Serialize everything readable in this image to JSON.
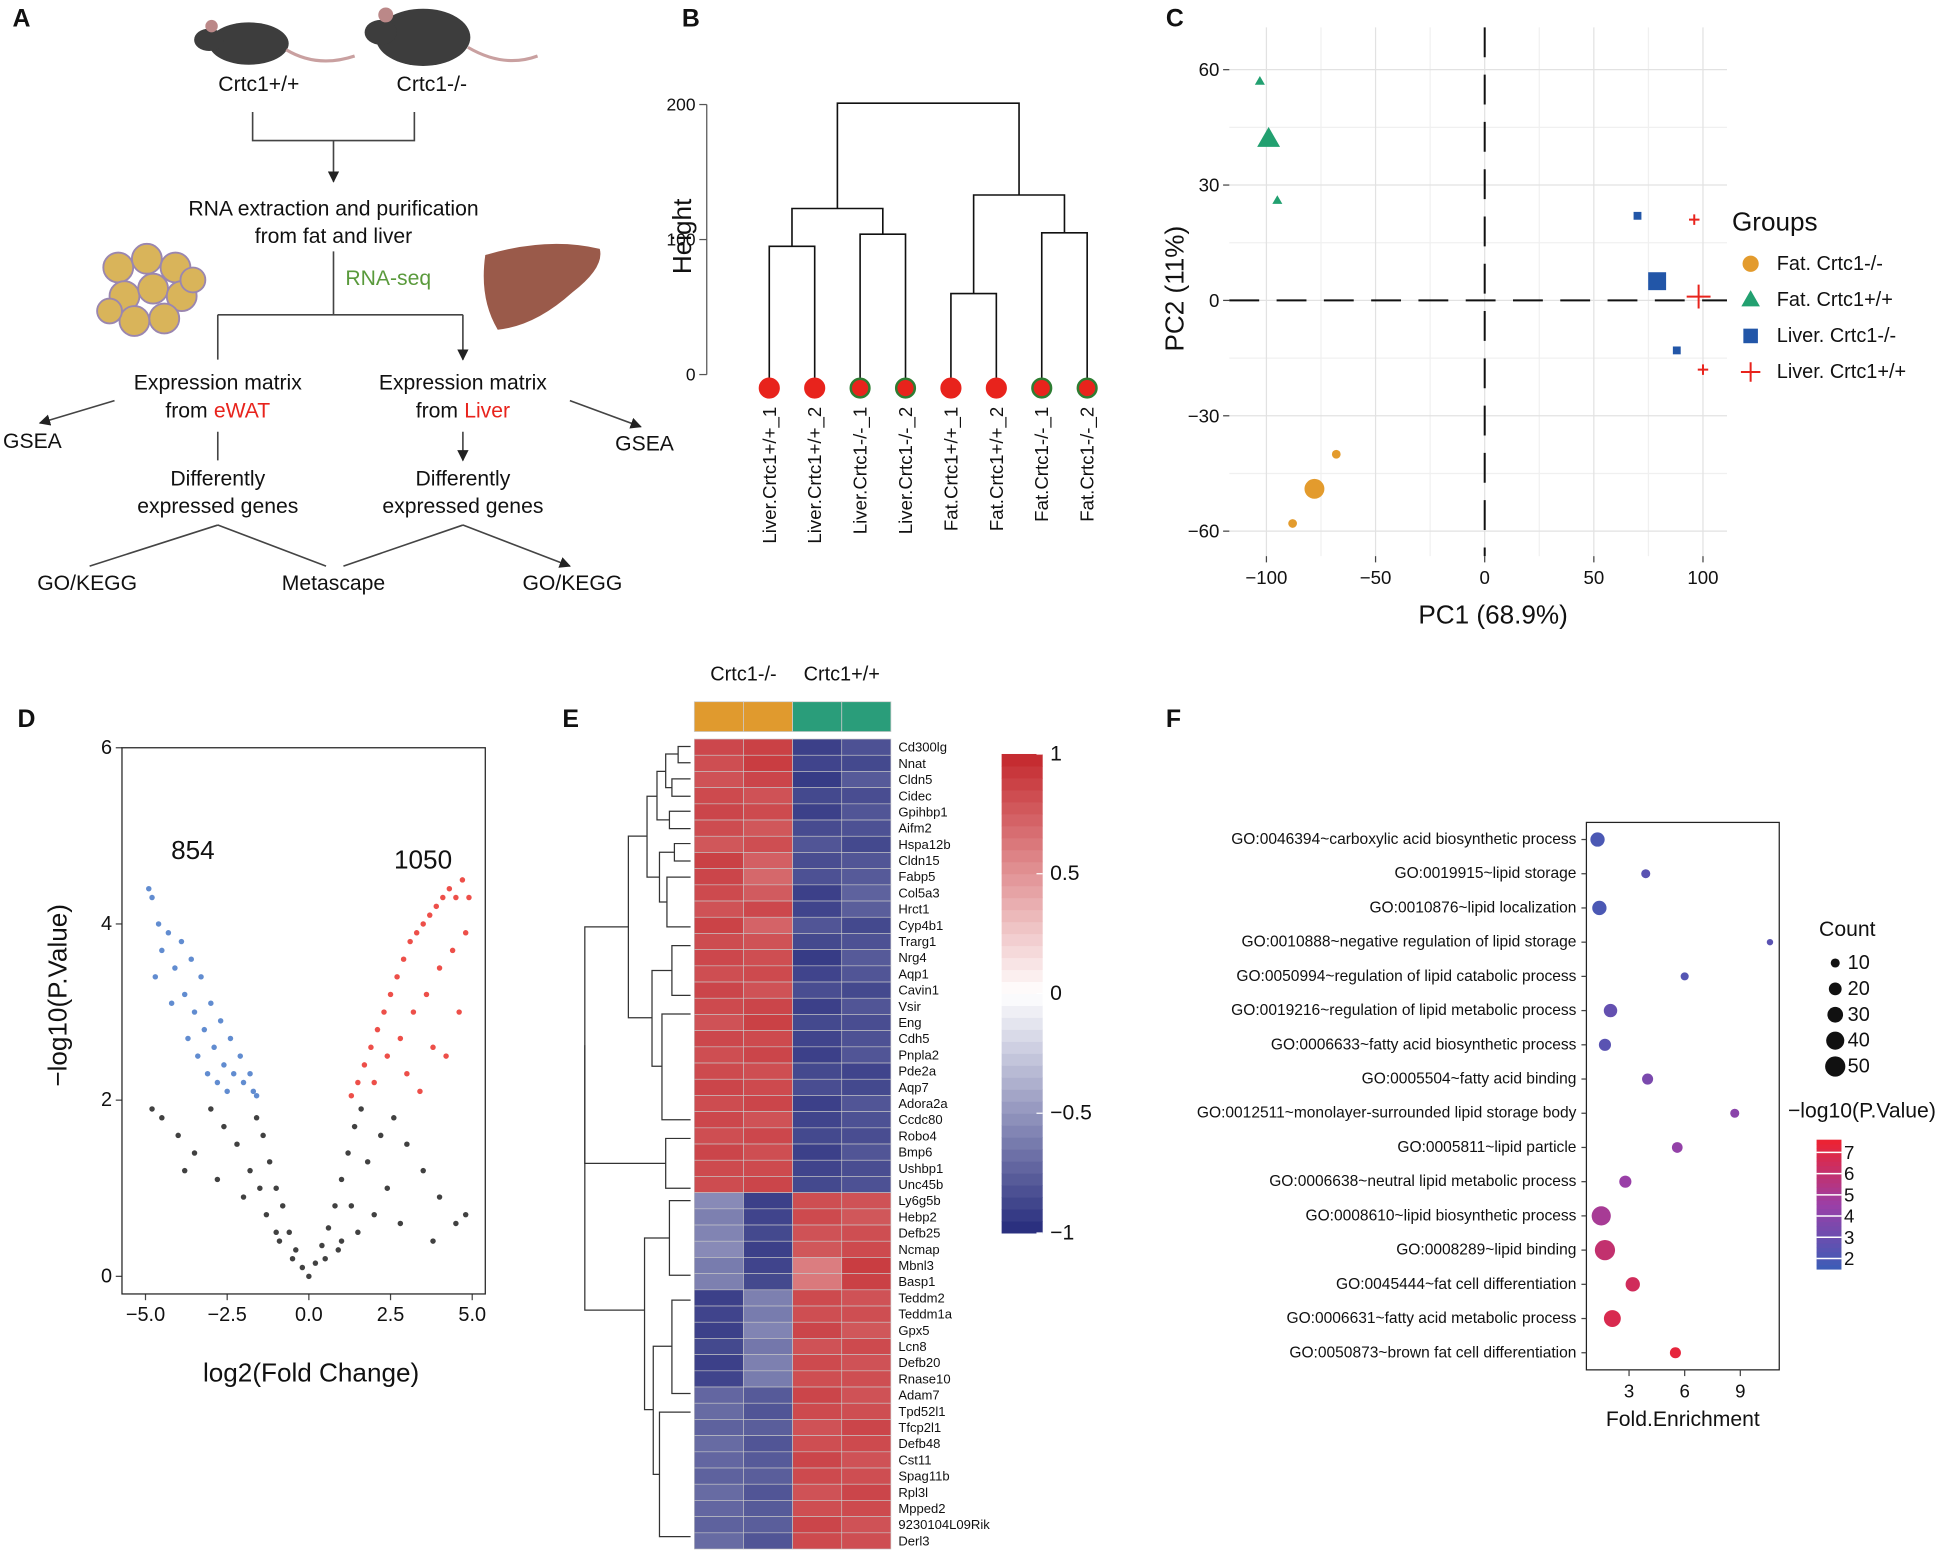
{
  "diagram": {
    "panel_label": "A",
    "mice": [
      "Crtc1+/+",
      "Crtc1-/-"
    ],
    "extraction": [
      "RNA extraction and purification",
      "from fat and liver"
    ],
    "method": "RNA-seq",
    "matrices": [
      {
        "lines": [
          "Expression matrix",
          "from"
        ],
        "tissue": "eWAT"
      },
      {
        "lines": [
          "Expression matrix",
          "from"
        ],
        "tissue": "Liver"
      }
    ],
    "gsea": [
      "GSEA",
      "GSEA"
    ],
    "deg": [
      [
        "Differently",
        "expressed genes"
      ],
      [
        "Differently",
        "expressed genes"
      ]
    ],
    "enrichment": [
      "GO/KEGG",
      "Metascape",
      "GO/KEGG"
    ]
  },
  "chart_data": [
    {
      "type": "dendrogram",
      "panel_label": "B",
      "ylabel": "Height",
      "leaves": [
        "Liver.Crtc1+/+_1",
        "Liver.Crtc1+/+_2",
        "Liver.Crtc1-/-_1",
        "Liver.Crtc1-/-_2",
        "Fat.Crtc1+/+_1",
        "Fat.Crtc1+/+_2",
        "Fat.Crtc1-/-_1",
        "Fat.Crtc1-/-_2"
      ],
      "leaf_fill": "#e8231c",
      "leaf_strokes": [
        "#e8231c",
        "#e8231c",
        "#2e7d32",
        "#2e7d32",
        "#e8231c",
        "#e8231c",
        "#2e7d32",
        "#2e7d32"
      ],
      "merges": [
        {
          "children": [
            0,
            1
          ],
          "height": 95
        },
        {
          "children": [
            2,
            3
          ],
          "height": 104
        },
        {
          "children": [
            8,
            9
          ],
          "height": 123
        },
        {
          "children": [
            4,
            5
          ],
          "height": 60
        },
        {
          "children": [
            6,
            7
          ],
          "height": 105
        },
        {
          "children": [
            11,
            12
          ],
          "height": 133
        },
        {
          "children": [
            10,
            13
          ],
          "height": 201
        }
      ],
      "ylim": [
        -10,
        205
      ],
      "yticks": [
        0,
        100,
        200
      ]
    },
    {
      "type": "scatter",
      "panel_label": "C",
      "xlabel": "PC1 (68.9%)",
      "ylabel": "PC2  (11%)",
      "xlim": [
        -117,
        111
      ],
      "ylim": [
        -66.5,
        71
      ],
      "xticks": [
        {
          "value": -100,
          "label": "−100"
        },
        {
          "value": -50,
          "label": "−50"
        },
        0,
        50,
        100
      ],
      "yticks": [
        {
          "value": -60,
          "label": "−60"
        },
        {
          "value": -30,
          "label": "−30"
        },
        0,
        30,
        60
      ],
      "grid": true,
      "reference_lines": {
        "x": 0,
        "y": 0
      },
      "legend": "right",
      "legend_title": "Groups",
      "series": [
        {
          "name": "Fat. Crtc1-/-",
          "color": "#e39b2d",
          "marker": "circle",
          "x": [
            -68,
            -88
          ],
          "values": [
            -40,
            -58
          ],
          "centroid": [
            -78,
            -49
          ]
        },
        {
          "name": "Fat. Crtc1+/+",
          "color": "#22a070",
          "marker": "triangle",
          "x": [
            -103,
            -95
          ],
          "values": [
            57,
            26
          ],
          "centroid": [
            -99,
            42
          ]
        },
        {
          "name": "Liver. Crtc1-/-",
          "color": "#2256a8",
          "marker": "square",
          "x": [
            70,
            88
          ],
          "values": [
            22,
            -13
          ],
          "centroid": [
            79,
            5
          ]
        },
        {
          "name": "Liver. Crtc1+/+",
          "color": "#e8231c",
          "marker": "plus",
          "x": [
            96,
            100
          ],
          "values": [
            21,
            -18
          ],
          "centroid": [
            98,
            1
          ]
        }
      ]
    },
    {
      "type": "scatter",
      "panel_label": "D",
      "xlabel": "log2(Fold Change)",
      "ylabel": "−log10(P.Value)",
      "xlim": [
        -5.72,
        5.4
      ],
      "ylim": [
        -0.2,
        6
      ],
      "xticks": [
        {
          "value": -5,
          "label": "−5.0"
        },
        {
          "value": -2.5,
          "label": "−2.5"
        },
        {
          "value": 0,
          "label": "0.0"
        },
        2.5,
        {
          "value": 5,
          "label": "5.0"
        }
      ],
      "yticks": [
        0,
        2,
        4,
        6
      ],
      "grid": false,
      "frame": true,
      "annotations": [
        "854",
        "1050"
      ],
      "series": [
        {
          "color": "#111111",
          "x": [
            0,
            -0.2,
            0.2,
            -0.4,
            0.4,
            -0.6,
            0.6,
            -0.8,
            0.8,
            -1.0,
            1.0,
            -1.2,
            1.2,
            -1.4,
            1.4,
            -1.6,
            1.6,
            -1.3,
            1.3,
            -1.8,
            1.8,
            -2.2,
            2.2,
            -2.6,
            2.6,
            -3.0,
            3.0,
            -3.5,
            3.5,
            -4.0,
            4.0,
            -4.5,
            4.5,
            -2.0,
            2.0,
            -2.8,
            2.8,
            -0.5,
            0.5,
            -1.0,
            1.0,
            -1.5,
            1.5,
            3.8,
            4.8,
            -4.8,
            -3.8,
            0.9,
            -0.9,
            2.4
          ],
          "values": [
            0,
            0.1,
            0.15,
            0.3,
            0.35,
            0.5,
            0.55,
            0.8,
            0.8,
            1.0,
            1.1,
            1.3,
            1.4,
            1.6,
            1.7,
            1.8,
            1.9,
            0.7,
            0.8,
            1.2,
            1.3,
            1.5,
            1.6,
            1.7,
            1.8,
            1.9,
            1.5,
            1.4,
            1.2,
            1.6,
            0.9,
            1.8,
            0.6,
            0.9,
            0.7,
            1.1,
            0.6,
            0.2,
            0.2,
            0.5,
            0.4,
            1.0,
            0.5,
            0.4,
            0.7,
            1.9,
            1.2,
            0.3,
            0.4,
            1.0
          ]
        },
        {
          "color": "#3a6fc4",
          "x": [
            -4.9,
            -4.8,
            -4.6,
            -4.5,
            -4.3,
            -4.1,
            -3.9,
            -3.8,
            -3.6,
            -3.5,
            -3.3,
            -3.2,
            -3.0,
            -2.9,
            -2.7,
            -2.6,
            -2.4,
            -2.3,
            -2.1,
            -2.0,
            -1.8,
            -1.7,
            -1.6,
            -4.7,
            -4.2,
            -3.7,
            -3.4,
            -3.1,
            -2.8,
            -2.5
          ],
          "values": [
            4.4,
            4.3,
            4.0,
            3.7,
            3.9,
            3.5,
            3.8,
            3.2,
            3.6,
            3.0,
            3.4,
            2.8,
            3.1,
            2.6,
            2.9,
            2.4,
            2.7,
            2.3,
            2.5,
            2.2,
            2.3,
            2.1,
            2.05,
            3.4,
            3.1,
            2.7,
            2.5,
            2.3,
            2.2,
            2.1
          ]
        },
        {
          "color": "#e8231c",
          "x": [
            1.3,
            1.5,
            1.7,
            1.9,
            2.1,
            2.3,
            2.5,
            2.7,
            2.9,
            3.1,
            3.3,
            3.5,
            3.7,
            3.9,
            4.1,
            4.3,
            4.5,
            4.7,
            4.9,
            2.0,
            2.4,
            2.8,
            3.2,
            3.6,
            4.0,
            4.4,
            4.8,
            3.0,
            3.8,
            4.6,
            4.2,
            3.4
          ],
          "values": [
            2.05,
            2.2,
            2.4,
            2.6,
            2.8,
            3.0,
            3.2,
            3.4,
            3.6,
            3.8,
            3.9,
            4.0,
            4.1,
            4.2,
            4.3,
            4.4,
            4.3,
            4.5,
            4.3,
            2.2,
            2.5,
            2.7,
            3.0,
            3.2,
            3.5,
            3.7,
            3.9,
            2.3,
            2.6,
            3.0,
            2.5,
            2.1
          ]
        }
      ]
    },
    {
      "type": "heatmap",
      "panel_label": "E",
      "groups": [
        {
          "name": "Crtc1-/-",
          "color": "#e09a2e"
        },
        {
          "name": "Crtc1+/+",
          "color": "#2a9d7a"
        }
      ],
      "column_groups": [
        0,
        0,
        1,
        1
      ],
      "rows": [
        "Cd300lg",
        "Nnat",
        "Cldn5",
        "Cidec",
        "Gpihbp1",
        "Aifm2",
        "Hspa12b",
        "Cldn15",
        "Fabp5",
        "Col5a3",
        "Hrct1",
        "Cyp4b1",
        "Trarg1",
        "Nrg4",
        "Aqp1",
        "Cavin1",
        "Vsir",
        "Eng",
        "Cdh5",
        "Pnpla2",
        "Pde2a",
        "Aqp7",
        "Adora2a",
        "Ccdc80",
        "Robo4",
        "Bmp6",
        "Ushbp1",
        "Unc45b",
        "Ly6g5b",
        "Hebp2",
        "Defb25",
        "Ncmap",
        "Mbnl3",
        "Basp1",
        "Teddm2",
        "Teddm1a",
        "Gpx5",
        "Lcn8",
        "Defb20",
        "Rnase10",
        "Adam7",
        "Tpd52l1",
        "Tfcp2l1",
        "Defb48",
        "Cst11",
        "Spag11b",
        "Rpl3l",
        "Mpped2",
        "9230104L09Rik",
        "Derl3"
      ],
      "values": [
        [
          0.85,
          0.88,
          -0.9,
          -0.82
        ],
        [
          0.82,
          0.9,
          -0.88,
          -0.86
        ],
        [
          0.8,
          0.86,
          -0.92,
          -0.78
        ],
        [
          0.84,
          0.8,
          -0.86,
          -0.84
        ],
        [
          0.86,
          0.84,
          -0.9,
          -0.8
        ],
        [
          0.83,
          0.78,
          -0.85,
          -0.82
        ],
        [
          0.78,
          0.82,
          -0.8,
          -0.86
        ],
        [
          0.88,
          0.74,
          -0.84,
          -0.8
        ],
        [
          0.86,
          0.7,
          -0.82,
          -0.78
        ],
        [
          0.84,
          0.76,
          -0.9,
          -0.74
        ],
        [
          0.8,
          0.85,
          -0.88,
          -0.76
        ],
        [
          0.87,
          0.72,
          -0.8,
          -0.86
        ],
        [
          0.83,
          0.8,
          -0.86,
          -0.82
        ],
        [
          0.85,
          0.82,
          -0.92,
          -0.78
        ],
        [
          0.82,
          0.84,
          -0.88,
          -0.8
        ],
        [
          0.86,
          0.8,
          -0.84,
          -0.86
        ],
        [
          0.84,
          0.86,
          -0.9,
          -0.8
        ],
        [
          0.8,
          0.88,
          -0.86,
          -0.84
        ],
        [
          0.85,
          0.84,
          -0.88,
          -0.82
        ],
        [
          0.82,
          0.86,
          -0.9,
          -0.8
        ],
        [
          0.84,
          0.82,
          -0.86,
          -0.88
        ],
        [
          0.86,
          0.84,
          -0.84,
          -0.86
        ],
        [
          0.83,
          0.86,
          -0.9,
          -0.8
        ],
        [
          0.85,
          0.8,
          -0.88,
          -0.82
        ],
        [
          0.82,
          0.85,
          -0.86,
          -0.84
        ],
        [
          0.86,
          0.82,
          -0.9,
          -0.8
        ],
        [
          0.84,
          0.84,
          -0.88,
          -0.84
        ],
        [
          0.83,
          0.86,
          -0.86,
          -0.82
        ],
        [
          -0.55,
          -0.9,
          0.82,
          0.8
        ],
        [
          -0.6,
          -0.88,
          0.84,
          0.78
        ],
        [
          -0.58,
          -0.86,
          0.8,
          0.82
        ],
        [
          -0.55,
          -0.9,
          0.78,
          0.84
        ],
        [
          -0.62,
          -0.88,
          0.6,
          0.9
        ],
        [
          -0.6,
          -0.86,
          0.62,
          0.88
        ],
        [
          -0.9,
          -0.6,
          0.84,
          0.8
        ],
        [
          -0.88,
          -0.62,
          0.82,
          0.82
        ],
        [
          -0.9,
          -0.58,
          0.86,
          0.78
        ],
        [
          -0.86,
          -0.64,
          0.8,
          0.84
        ],
        [
          -0.9,
          -0.6,
          0.84,
          0.8
        ],
        [
          -0.88,
          -0.62,
          0.82,
          0.82
        ],
        [
          -0.72,
          -0.78,
          0.86,
          0.8
        ],
        [
          -0.7,
          -0.8,
          0.84,
          0.82
        ],
        [
          -0.74,
          -0.76,
          0.8,
          0.86
        ],
        [
          -0.7,
          -0.8,
          0.82,
          0.84
        ],
        [
          -0.72,
          -0.78,
          0.86,
          0.8
        ],
        [
          -0.74,
          -0.76,
          0.84,
          0.82
        ],
        [
          -0.7,
          -0.8,
          0.8,
          0.86
        ],
        [
          -0.72,
          -0.78,
          0.82,
          0.84
        ],
        [
          -0.74,
          -0.76,
          0.86,
          0.8
        ],
        [
          -0.7,
          -0.8,
          0.84,
          0.82
        ]
      ],
      "clim": [
        -1,
        1
      ],
      "colormap": [
        "#262b7c",
        "#ffffff",
        "#c3272c"
      ],
      "cticks": [
        1,
        0.5,
        0,
        {
          "value": -0.5,
          "label": "−0.5"
        },
        {
          "value": -1,
          "label": "−1"
        }
      ]
    },
    {
      "type": "dotplot",
      "panel_label": "F",
      "xlabel": "Fold.Enrichment",
      "terms": [
        "GO:0046394~carboxylic acid biosynthetic process",
        "GO:0019915~lipid storage",
        "GO:0010876~lipid localization",
        "GO:0010888~negative regulation of lipid storage",
        "GO:0050994~regulation of lipid catabolic process",
        "GO:0019216~regulation of lipid metabolic process",
        "GO:0006633~fatty acid biosynthetic process",
        "GO:0005504~fatty acid binding",
        "GO:0012511~monolayer-surrounded lipid storage body",
        "GO:0005811~lipid particle",
        "GO:0006638~neutral lipid metabolic process",
        "GO:0008610~lipid biosynthetic process",
        "GO:0008289~lipid binding",
        "GO:0045444~fat cell differentiation",
        "GO:0006631~fatty acid metabolic process",
        "GO:0050873~brown fat cell differentiation"
      ],
      "fold_enrichment": [
        1.3,
        3.9,
        1.4,
        10.6,
        6.0,
        2.0,
        1.7,
        4.0,
        8.7,
        5.6,
        2.8,
        1.5,
        1.7,
        3.2,
        2.1,
        5.5
      ],
      "count": [
        25,
        10,
        25,
        5,
        8,
        22,
        18,
        15,
        10,
        14,
        18,
        45,
        50,
        25,
        35,
        15
      ],
      "neglog10p": [
        2.0,
        2.5,
        2.0,
        2.5,
        2.3,
        2.8,
        2.5,
        3.5,
        4.0,
        4.3,
        4.5,
        5.0,
        6.0,
        6.5,
        6.8,
        7.3
      ],
      "xlim": [
        0.7,
        11.1
      ],
      "xticks": [
        3,
        6,
        9
      ],
      "size_legend_title": "Count",
      "size_legend": [
        10,
        20,
        30,
        40,
        50
      ],
      "color_legend_title": "−log10(P.Value)",
      "clim": [
        1.5,
        7.6
      ],
      "cticks": [
        2,
        3,
        4,
        5,
        6,
        7
      ],
      "colormap": [
        "#3b5db7",
        "#9b3fa7",
        "#ee2230"
      ]
    }
  ]
}
